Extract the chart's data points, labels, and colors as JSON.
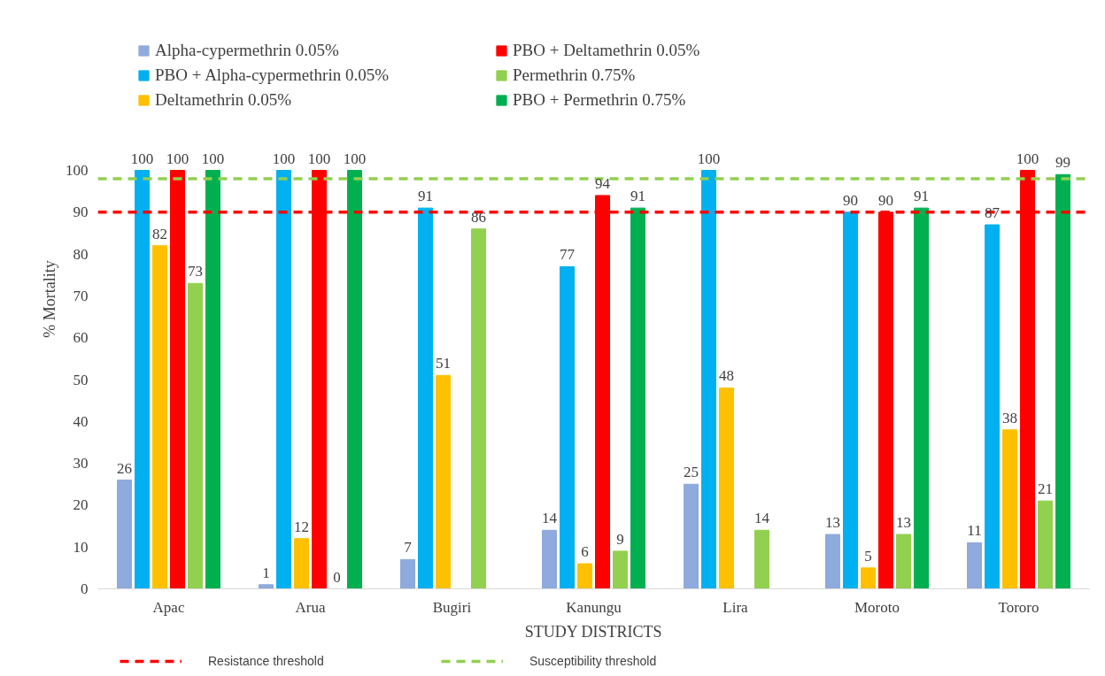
{
  "chart_data": {
    "type": "bar",
    "xlabel": "STUDY DISTRICTS",
    "ylabel": "% Mortality",
    "categories": [
      "Apac",
      "Arua",
      "Bugiri",
      "Kanungu",
      "Lira",
      "Moroto",
      "Tororo"
    ],
    "series": [
      {
        "name": "Alpha-cypermethrin 0.05%",
        "color": "#8faadc",
        "values": [
          26,
          1,
          7,
          14,
          25,
          13,
          11
        ]
      },
      {
        "name": "PBO + Alpha-cypermethrin 0.05%",
        "color": "#00b0f0",
        "values": [
          100,
          100,
          91,
          77,
          100,
          90,
          87
        ]
      },
      {
        "name": "Deltamethrin 0.05%",
        "color": "#ffc000",
        "values": [
          82,
          12,
          51,
          6,
          48,
          5,
          38
        ]
      },
      {
        "name": "PBO + Deltamethrin 0.05%",
        "color": "#ff0000",
        "values": [
          100,
          100,
          null,
          94,
          null,
          90,
          100
        ]
      },
      {
        "name": "Permethrin 0.75%",
        "color": "#92d050",
        "values": [
          73,
          0,
          86,
          9,
          14,
          13,
          21
        ]
      },
      {
        "name": "PBO + Permethrin 0.75%",
        "color": "#00b050",
        "values": [
          100,
          100,
          null,
          91,
          null,
          91,
          99
        ]
      }
    ],
    "ylim": [
      0,
      100
    ],
    "yticks": [
      0,
      10,
      20,
      30,
      40,
      50,
      60,
      70,
      80,
      90,
      100
    ],
    "ref_lines": [
      {
        "axis": "y",
        "value": 90,
        "label": "Resistance threshold",
        "color": "#ff0000",
        "line_style": "dashed"
      },
      {
        "axis": "y",
        "value": 98,
        "label": "Susceptibility threshold",
        "color": "#92d050",
        "line_style": "dashed"
      }
    ],
    "data_labels": true,
    "grid": false,
    "legend": "top"
  }
}
